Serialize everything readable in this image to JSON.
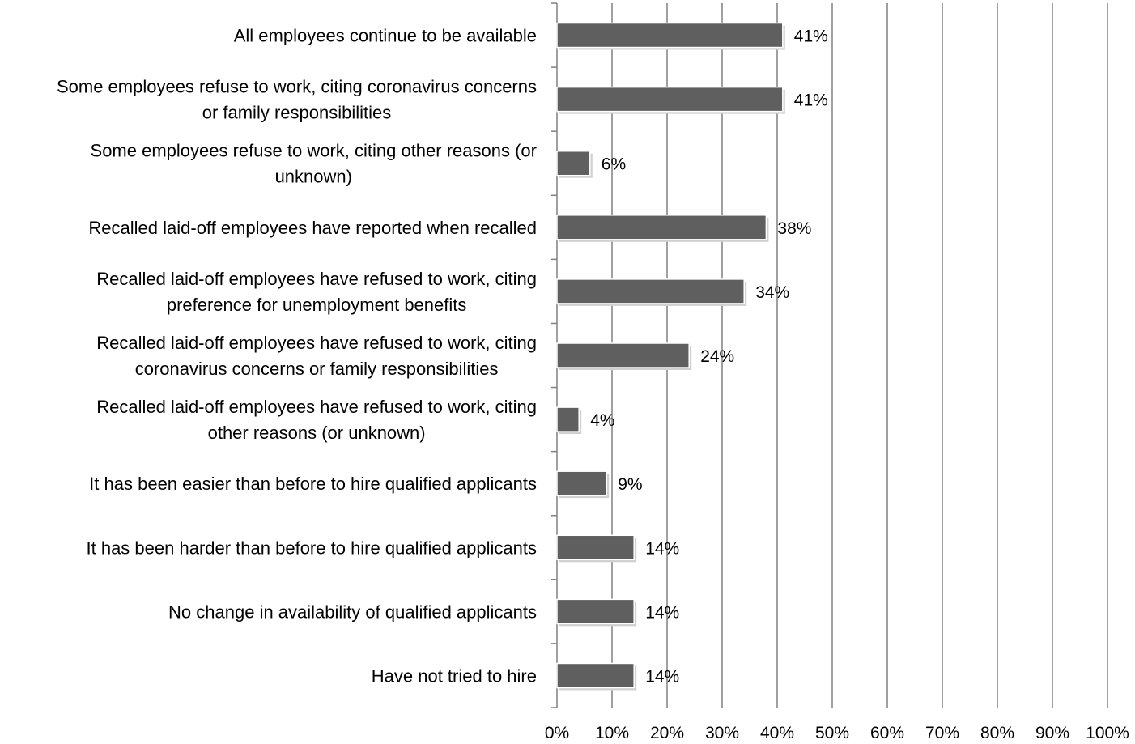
{
  "chart_data": {
    "type": "bar",
    "orientation": "horizontal",
    "categories": [
      [
        "All employees continue to be available"
      ],
      [
        "Some employees refuse to work, citing coronavirus concerns",
        "or family responsibilities"
      ],
      [
        "Some employees refuse to work, citing other reasons (or",
        "unknown)"
      ],
      [
        "Recalled laid-off employees have reported when recalled"
      ],
      [
        "Recalled laid-off employees have refused to work, citing",
        "preference for unemployment benefits"
      ],
      [
        "Recalled laid-off employees have refused to work, citing",
        "coronavirus concerns or family responsibilities"
      ],
      [
        "Recalled laid-off employees have refused to work, citing",
        "other reasons (or unknown)"
      ],
      [
        "It has been easier than before to hire qualified applicants"
      ],
      [
        "It has been harder than before to hire qualified applicants"
      ],
      [
        "No change in availability of qualified applicants"
      ],
      [
        "Have not tried to hire"
      ]
    ],
    "values": [
      41,
      41,
      6,
      38,
      34,
      24,
      4,
      9,
      14,
      14,
      14
    ],
    "value_labels": [
      "41%",
      "41%",
      "6%",
      "38%",
      "34%",
      "24%",
      "4%",
      "9%",
      "14%",
      "14%",
      "14%"
    ],
    "x_ticks": [
      "0%",
      "10%",
      "20%",
      "30%",
      "40%",
      "50%",
      "60%",
      "70%",
      "80%",
      "90%",
      "100%"
    ],
    "xlim": [
      0,
      100
    ],
    "grid": true,
    "legend": "none",
    "bar_color": "#5f5f5f",
    "grid_color": "#808080",
    "axis_color": "#808080",
    "shadow_color": "#d0d0d0"
  }
}
